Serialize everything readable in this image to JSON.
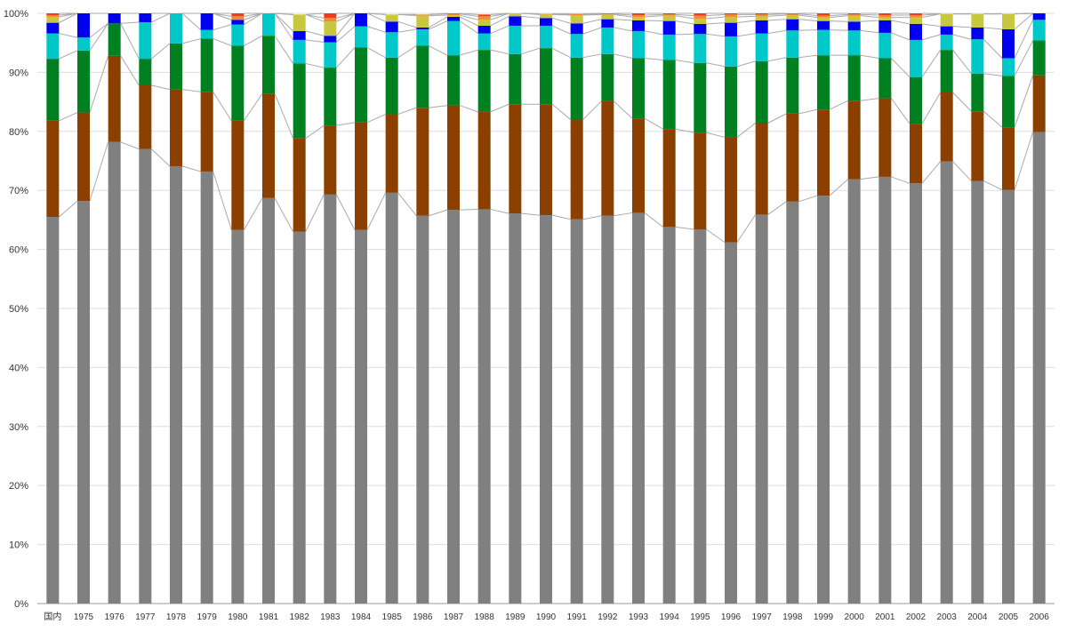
{
  "chart_data": {
    "type": "bar",
    "stacked": true,
    "normalized": true,
    "connector_lines": true,
    "grid": true,
    "legend": "none",
    "ylim": [
      0,
      100
    ],
    "y_ticks": [
      "0%",
      "10%",
      "20%",
      "30%",
      "40%",
      "50%",
      "60%",
      "70%",
      "80%",
      "90%",
      "100%"
    ],
    "categories": [
      "国内",
      "1975",
      "1976",
      "1977",
      "1978",
      "1979",
      "1980",
      "1981",
      "1982",
      "1983",
      "1984",
      "1985",
      "1986",
      "1987",
      "1988",
      "1989",
      "1990",
      "1991",
      "1992",
      "1993",
      "1994",
      "1995",
      "1996",
      "1997",
      "1998",
      "1999",
      "2000",
      "2001",
      "2002",
      "2003",
      "2004",
      "2005",
      "2006"
    ],
    "series": [
      {
        "color": "#808080",
        "values": [
          65.5,
          68.2,
          78.2,
          77.0,
          74.1,
          73.2,
          63.3,
          68.7,
          63.0,
          69.3,
          63.3,
          69.6,
          65.7,
          66.7,
          66.8,
          66.1,
          65.8,
          65.1,
          65.7,
          66.2,
          63.8,
          63.4,
          61.2,
          65.9,
          68.1,
          69.1,
          71.9,
          72.3,
          71.2,
          74.9,
          71.6,
          70.1,
          79.9
        ]
      },
      {
        "color": "#8B4000",
        "values": [
          16.3,
          15.0,
          14.6,
          10.8,
          13.0,
          13.5,
          18.5,
          17.7,
          15.8,
          11.7,
          18.2,
          13.3,
          18.3,
          17.7,
          16.5,
          18.5,
          18.8,
          16.9,
          19.4,
          16.0,
          16.6,
          16.4,
          17.8,
          15.5,
          14.9,
          14.6,
          13.3,
          13.3,
          10.1,
          11.7,
          11.8,
          10.6,
          9.6
        ]
      },
      {
        "color": "#008020",
        "values": [
          10.5,
          10.5,
          5.5,
          4.5,
          7.8,
          9.0,
          12.7,
          9.8,
          12.7,
          9.8,
          12.7,
          9.6,
          10.5,
          8.5,
          10.5,
          8.5,
          9.5,
          10.5,
          8.0,
          10.2,
          11.7,
          11.8,
          12.0,
          10.5,
          9.5,
          9.2,
          7.7,
          6.8,
          7.9,
          7.2,
          6.4,
          8.7,
          5.9
        ]
      },
      {
        "color": "#00C8C8",
        "values": [
          4.3,
          2.2,
          0,
          6.2,
          5.1,
          1.5,
          3.6,
          3.8,
          4.0,
          4.3,
          3.6,
          4.3,
          2.8,
          5.8,
          2.8,
          4.8,
          3.8,
          4.0,
          4.5,
          4.6,
          4.3,
          4.9,
          5.1,
          4.7,
          4.6,
          4.3,
          4.2,
          4.3,
          6.3,
          2.6,
          5.8,
          3.0,
          3.5
        ]
      },
      {
        "color": "#0000F0",
        "values": [
          1.8,
          4.1,
          1.7,
          1.5,
          0,
          2.8,
          0.8,
          0,
          1.5,
          1.1,
          2.2,
          1.8,
          0.3,
          0.7,
          1.3,
          1.6,
          1.3,
          1.8,
          1.4,
          1.8,
          2.3,
          1.7,
          2.3,
          2.2,
          1.9,
          1.5,
          1.5,
          2.1,
          2.7,
          1.4,
          2.0,
          4.9,
          1.1
        ]
      },
      {
        "color": "#C8C840",
        "values": [
          1.0,
          0,
          0,
          0,
          0,
          0,
          0,
          0,
          2.8,
          2.4,
          0,
          1.2,
          2.0,
          0.3,
          1.0,
          0.6,
          0.6,
          1.4,
          0.8,
          0.6,
          0.9,
          0.9,
          1.0,
          0.7,
          0.7,
          0.6,
          1.0,
          0.5,
          1.1,
          2.1,
          2.3,
          2.6,
          0
        ]
      },
      {
        "color": "#F08C30",
        "values": [
          0.3,
          0,
          0,
          0,
          0,
          0,
          0.6,
          0,
          0,
          0.6,
          0,
          0,
          0.2,
          0.2,
          0.6,
          0.2,
          0.1,
          0.1,
          0.1,
          0.3,
          0.2,
          0.5,
          0.4,
          0.3,
          0.2,
          0.3,
          0.2,
          0.4,
          0.4,
          0,
          0,
          0,
          0
        ]
      },
      {
        "color": "#F03C1E",
        "values": [
          0.3,
          0,
          0,
          0,
          0,
          0,
          0.5,
          0,
          0,
          0.8,
          0,
          0,
          0,
          0.1,
          0.3,
          0,
          0,
          0.1,
          0.1,
          0.3,
          0.2,
          0.4,
          0.2,
          0.2,
          0.1,
          0.4,
          0.2,
          0.3,
          0.3,
          0,
          0,
          0,
          0
        ]
      }
    ]
  }
}
